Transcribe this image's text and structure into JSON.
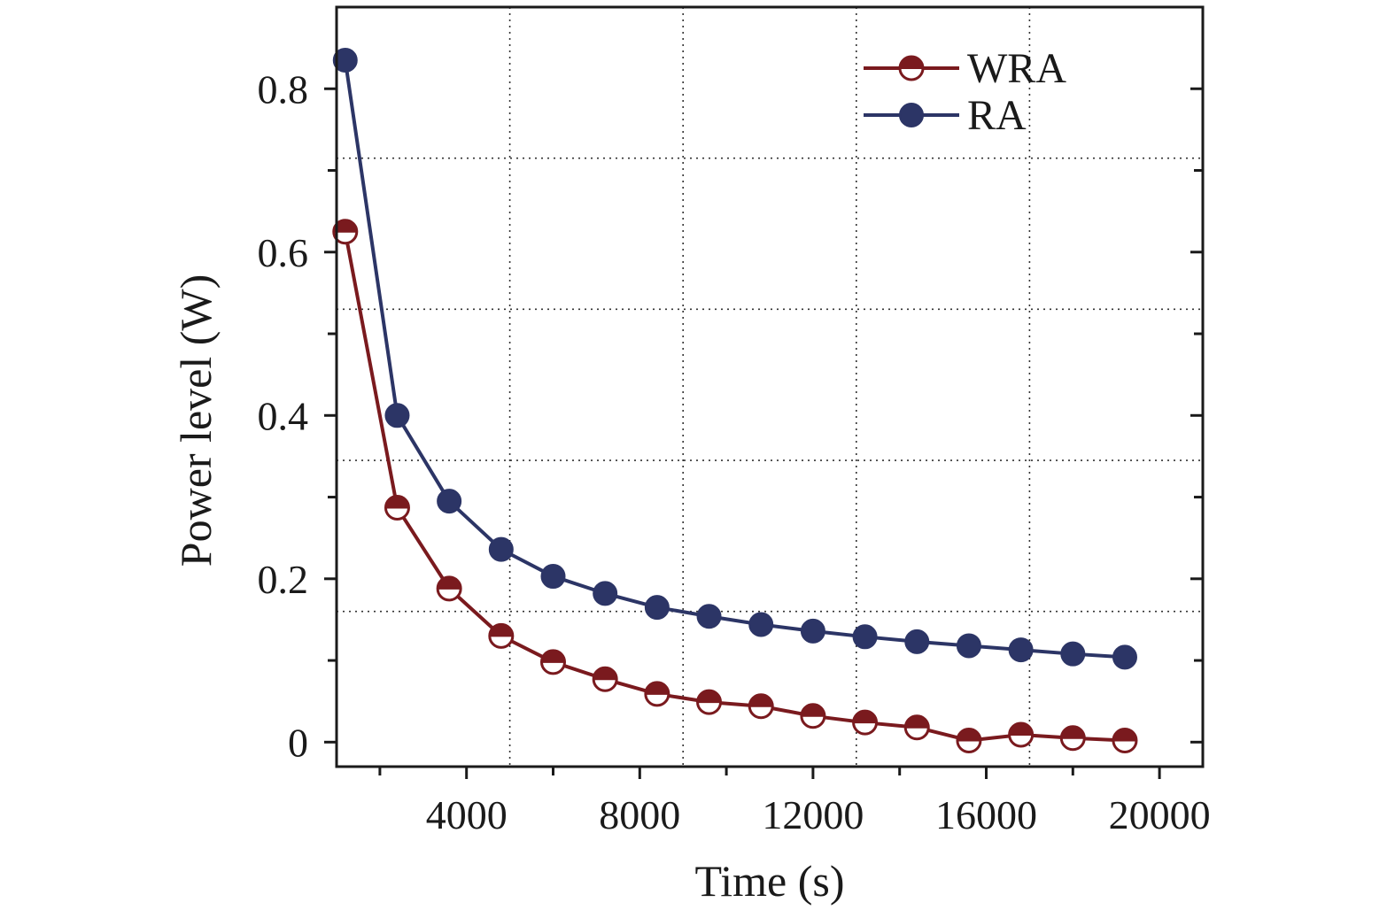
{
  "chart_data": {
    "type": "line",
    "xlabel": "Time (s)",
    "ylabel": "Power level (W)",
    "xlim": [
      1000,
      21000
    ],
    "ylim": [
      -0.03,
      0.9
    ],
    "x_ticks": [
      4000,
      8000,
      12000,
      16000,
      20000
    ],
    "x_tick_labels": [
      "4000",
      "8000",
      "12000",
      "16000",
      "20000"
    ],
    "x_minor_ticks": [
      2000,
      6000,
      10000,
      14000,
      18000
    ],
    "y_ticks": [
      0,
      0.2,
      0.4,
      0.6,
      0.8
    ],
    "y_tick_labels": [
      "0",
      "0.2",
      "0.4",
      "0.6",
      "0.8"
    ],
    "y_minor_ticks": [
      0.1,
      0.3,
      0.5,
      0.7
    ],
    "grid": true,
    "grid_x": [
      5000,
      9000,
      13000,
      17000
    ],
    "grid_y": [
      0.16,
      0.345,
      0.53,
      0.715
    ],
    "legend_position": "top-right",
    "series": [
      {
        "name": "WRA",
        "color": "#7a1a1e",
        "marker": "half-filled-circle",
        "x": [
          1200,
          2400,
          3600,
          4800,
          6000,
          7200,
          8400,
          9600,
          10800,
          12000,
          13200,
          14400,
          15600,
          16800,
          18000,
          19200
        ],
        "y": [
          0.625,
          0.287,
          0.188,
          0.13,
          0.098,
          0.077,
          0.059,
          0.049,
          0.044,
          0.032,
          0.024,
          0.018,
          0.002,
          0.009,
          0.005,
          0.002
        ]
      },
      {
        "name": "RA",
        "color": "#2c3566",
        "marker": "filled-circle",
        "x": [
          1200,
          2400,
          3600,
          4800,
          6000,
          7200,
          8400,
          9600,
          10800,
          12000,
          13200,
          14400,
          15600,
          16800,
          18000,
          19200
        ],
        "y": [
          0.835,
          0.4,
          0.295,
          0.236,
          0.203,
          0.182,
          0.165,
          0.154,
          0.144,
          0.136,
          0.129,
          0.123,
          0.118,
          0.113,
          0.108,
          0.104
        ]
      }
    ]
  }
}
